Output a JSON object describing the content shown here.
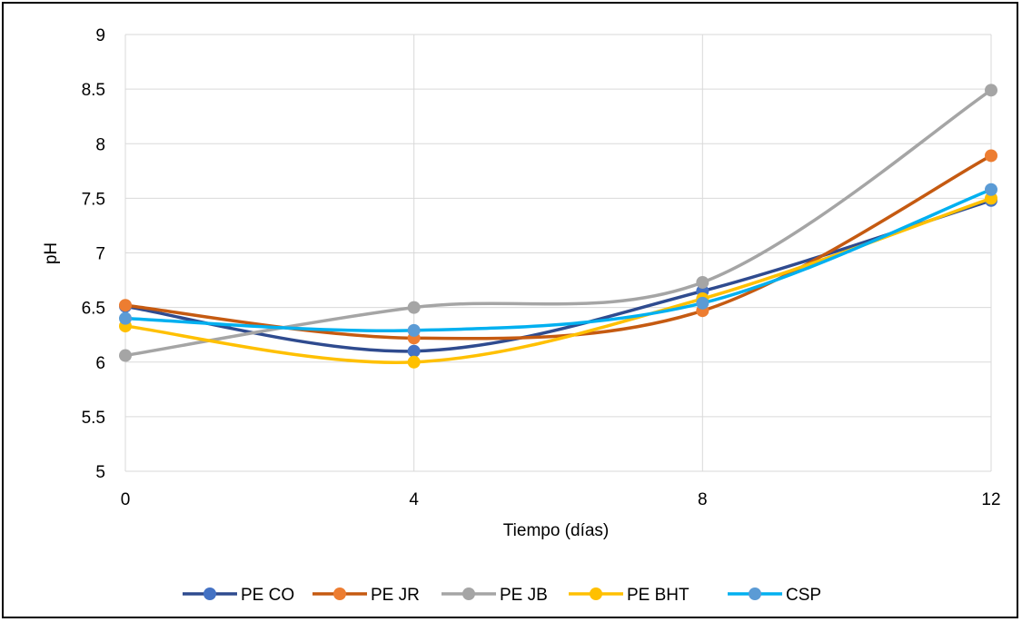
{
  "chart_data": {
    "type": "line",
    "smooth": true,
    "x": [
      0,
      4,
      8,
      12
    ],
    "xticks": [
      "0",
      "4",
      "8",
      "12"
    ],
    "xlabel": "Tiempo (días)",
    "ylabel": "pH",
    "ylim": [
      5,
      9
    ],
    "yticks": [
      "5",
      "5.5",
      "6",
      "6.5",
      "7",
      "7.5",
      "8",
      "8.5",
      "9"
    ],
    "grid": true,
    "legend_position": "bottom",
    "series": [
      {
        "name": "PE CO",
        "color": "#2F4B8F",
        "marker": "#4472C4",
        "values": [
          6.51,
          6.1,
          6.65,
          7.48
        ]
      },
      {
        "name": "PE JR",
        "color": "#C55A11",
        "marker": "#ED7D31",
        "values": [
          6.52,
          6.22,
          6.47,
          7.89
        ]
      },
      {
        "name": "PE JB",
        "color": "#A5A5A5",
        "marker": "#A5A5A5",
        "values": [
          6.06,
          6.5,
          6.73,
          8.49
        ]
      },
      {
        "name": "PE BHT",
        "color": "#FFC000",
        "marker": "#FFC000",
        "values": [
          6.33,
          6.0,
          6.58,
          7.5
        ]
      },
      {
        "name": "CSP",
        "color": "#00B0F0",
        "marker": "#5B9BD5",
        "values": [
          6.4,
          6.29,
          6.54,
          7.58
        ]
      }
    ]
  }
}
